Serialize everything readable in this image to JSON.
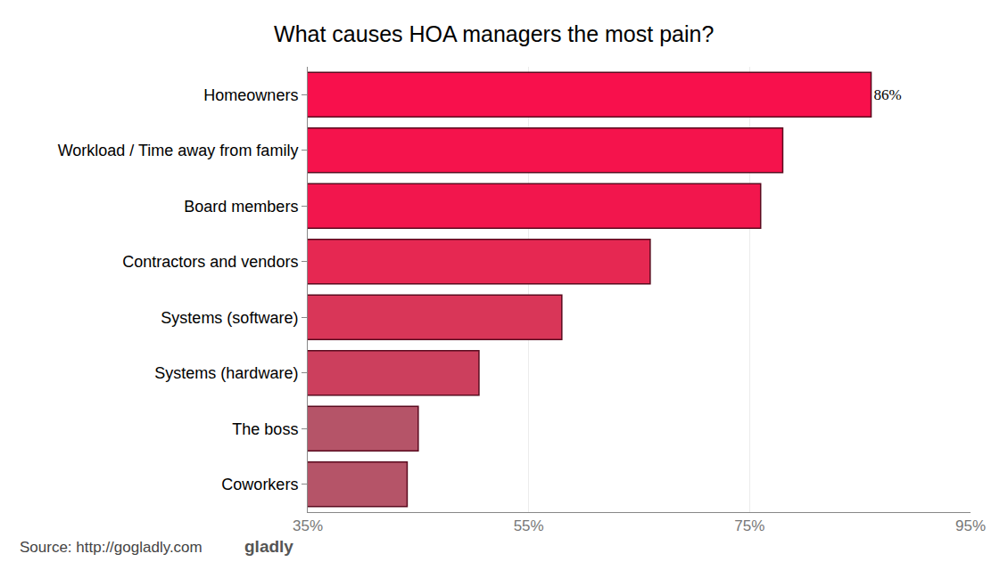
{
  "chart_data": {
    "type": "bar",
    "title": "What causes HOA managers the most pain?",
    "orientation": "horizontal",
    "categories": [
      "Homeowners",
      "Workload / Time away from family",
      "Board members",
      "Contractors and vendors",
      "Systems (software)",
      "Systems (hardware)",
      "The boss",
      "Coworkers"
    ],
    "values": [
      86,
      78,
      76,
      66,
      58,
      50.5,
      45,
      44
    ],
    "value_labels": [
      "86%",
      null,
      null,
      null,
      null,
      null,
      null,
      null
    ],
    "data_labels": true,
    "colors": [
      "#f8104c",
      "#f5134c",
      "#f2164d",
      "#e62852",
      "#d93658",
      "#cc3f5d",
      "#b55468",
      "#b55468"
    ],
    "xlim": [
      35,
      95
    ],
    "xticks": [
      {
        "value": 35,
        "label": "35%"
      },
      {
        "value": 55,
        "label": "55%"
      },
      {
        "value": 75,
        "label": "75%"
      },
      {
        "value": 95,
        "label": "95%"
      }
    ],
    "grid": true,
    "source": "Source: http://gogladly.com",
    "logo": "gladly"
  }
}
